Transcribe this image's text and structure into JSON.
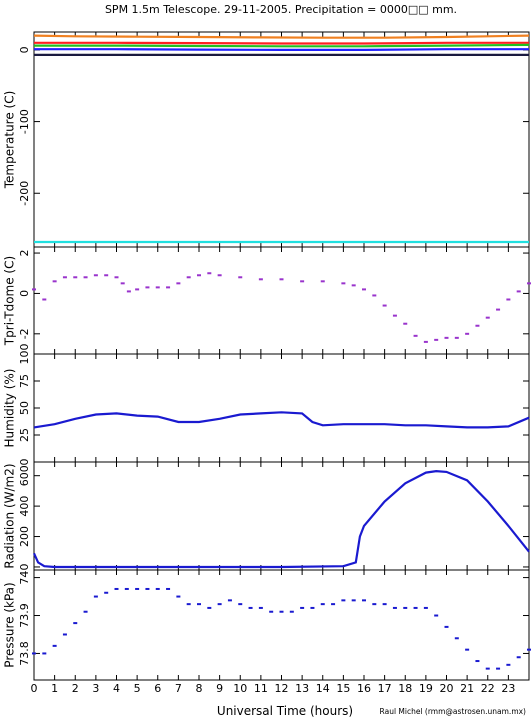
{
  "title": "SPM 1.5m Telescope. 29-11-2005. Precipitation = 0000□□ mm.",
  "credit": "Raul Michel (rmm@astrosen.unam.mx)",
  "x_axis": {
    "label": "Universal Time (hours)",
    "range": [
      0,
      24
    ],
    "ticks": [
      0,
      1,
      2,
      3,
      4,
      5,
      6,
      7,
      8,
      9,
      10,
      11,
      12,
      13,
      14,
      15,
      16,
      17,
      18,
      19,
      20,
      21,
      22,
      23
    ]
  },
  "chart_data": [
    {
      "type": "line",
      "name": "temperature",
      "ylabel": "Temperature (C)",
      "ylim": [
        -275,
        25
      ],
      "yticks": [
        0,
        -100,
        -200
      ],
      "series": [
        {
          "color": "#f08020",
          "x": [
            0,
            2,
            5,
            8,
            11,
            14,
            17,
            20,
            22,
            24
          ],
          "values": [
            20,
            19,
            18.5,
            18,
            17.5,
            17,
            17,
            18,
            19,
            20
          ]
        },
        {
          "color": "#ff2020",
          "x": [
            0,
            4,
            8,
            12,
            16,
            20,
            24
          ],
          "values": [
            10,
            10,
            9.5,
            9,
            9,
            10,
            10
          ]
        },
        {
          "color": "#20c020",
          "x": [
            0,
            4,
            8,
            12,
            16,
            20,
            24
          ],
          "values": [
            6,
            6,
            5.5,
            5,
            5,
            6,
            7
          ]
        },
        {
          "color": "#2020ff",
          "x": [
            0,
            4,
            8,
            12,
            16,
            20,
            24
          ],
          "values": [
            1,
            1,
            0.5,
            0,
            0,
            1,
            1
          ]
        },
        {
          "color": "#1a1a40",
          "x": [
            0,
            24
          ],
          "values": [
            -7,
            -7
          ]
        },
        {
          "color": "#20e0e0",
          "x": [
            0,
            24
          ],
          "values": [
            -268,
            -268
          ]
        }
      ]
    },
    {
      "type": "scatter",
      "name": "tpri-tdome",
      "ylabel": "Tpri-Tdome (C)",
      "ylim": [
        -3,
        2.3
      ],
      "yticks": [
        -2,
        0,
        2
      ],
      "color": "#9933cc",
      "x": [
        0,
        0.5,
        1,
        1.5,
        2,
        2.5,
        3,
        3.5,
        4,
        4.3,
        4.6,
        5,
        5.5,
        6,
        6.5,
        7,
        7.5,
        8,
        8.5,
        9,
        10,
        11,
        12,
        13,
        14,
        15,
        15.5,
        16,
        16.5,
        17,
        17.5,
        18,
        18.5,
        19,
        19.5,
        20,
        20.5,
        21,
        21.5,
        22,
        22.5,
        23,
        23.5,
        24
      ],
      "values": [
        0.2,
        -0.3,
        0.6,
        0.8,
        0.8,
        0.8,
        0.9,
        0.9,
        0.8,
        0.5,
        0.1,
        0.2,
        0.3,
        0.3,
        0.3,
        0.5,
        0.8,
        0.9,
        1,
        0.9,
        0.8,
        0.7,
        0.7,
        0.6,
        0.6,
        0.5,
        0.4,
        0.2,
        -0.1,
        -0.6,
        -1.1,
        -1.5,
        -2.1,
        -2.4,
        -2.3,
        -2.2,
        -2.2,
        -2,
        -1.6,
        -1.2,
        -0.8,
        -0.3,
        0.1,
        0.5
      ]
    },
    {
      "type": "line",
      "name": "humidity",
      "ylabel": "Humidity (%)",
      "ylim": [
        0,
        100
      ],
      "yticks": [
        0,
        25,
        50,
        75,
        100
      ],
      "ytick_labels": [
        "0",
        "25",
        "50",
        "75",
        "100"
      ],
      "color": "#1a1ad0",
      "x": [
        0,
        1,
        2,
        3,
        4,
        5,
        6,
        7,
        8,
        9,
        10,
        11,
        12,
        13,
        13.5,
        14,
        15,
        16,
        17,
        18,
        19,
        20,
        21,
        22,
        23,
        24
      ],
      "values": [
        32,
        35,
        40,
        44,
        45,
        43,
        42,
        37,
        37,
        40,
        44,
        45,
        46,
        45,
        37,
        34,
        35,
        35,
        35,
        34,
        34,
        33,
        32,
        32,
        33,
        41
      ]
    },
    {
      "type": "line",
      "name": "radiation",
      "ylabel": "Radiation (W/m2)",
      "ylim": [
        -20,
        690
      ],
      "yticks": [
        0,
        200,
        400,
        600
      ],
      "color": "#1a1ad0",
      "x": [
        0,
        0.2,
        0.5,
        1,
        4,
        8,
        12,
        15,
        15.6,
        15.8,
        16,
        17,
        18,
        19,
        19.5,
        20,
        21,
        22,
        23,
        24
      ],
      "values": [
        90,
        30,
        5,
        0,
        0,
        0,
        0,
        5,
        30,
        200,
        270,
        430,
        550,
        620,
        630,
        625,
        570,
        430,
        270,
        100
      ]
    },
    {
      "type": "scatter",
      "name": "pressure",
      "ylabel": "Pressure (kPa)",
      "ylim": [
        73.73,
        74.02
      ],
      "yticks": [
        73.8,
        73.9,
        74.0
      ],
      "ytick_labels": [
        "73.8",
        "73.9",
        "74"
      ],
      "color": "#1a1ad0",
      "x": [
        0,
        0.5,
        1,
        1.5,
        2,
        2.5,
        3,
        3.5,
        4,
        4.5,
        5,
        5.5,
        6,
        6.5,
        7,
        7.5,
        8,
        8.5,
        9,
        9.5,
        10,
        10.5,
        11,
        11.5,
        12,
        12.5,
        13,
        13.5,
        14,
        14.5,
        15,
        15.5,
        16,
        16.5,
        17,
        17.5,
        18,
        18.5,
        19,
        19.5,
        20,
        20.5,
        21,
        21.5,
        22,
        22.5,
        23,
        23.5,
        24
      ],
      "values": [
        73.8,
        73.8,
        73.82,
        73.85,
        73.88,
        73.91,
        73.95,
        73.96,
        73.97,
        73.97,
        73.97,
        73.97,
        73.97,
        73.97,
        73.95,
        73.93,
        73.93,
        73.92,
        73.93,
        73.94,
        73.93,
        73.92,
        73.92,
        73.91,
        73.91,
        73.91,
        73.92,
        73.92,
        73.93,
        73.93,
        73.94,
        73.94,
        73.94,
        73.93,
        73.93,
        73.92,
        73.92,
        73.92,
        73.92,
        73.9,
        73.87,
        73.84,
        73.81,
        73.78,
        73.76,
        73.76,
        73.77,
        73.79,
        73.81
      ]
    }
  ]
}
